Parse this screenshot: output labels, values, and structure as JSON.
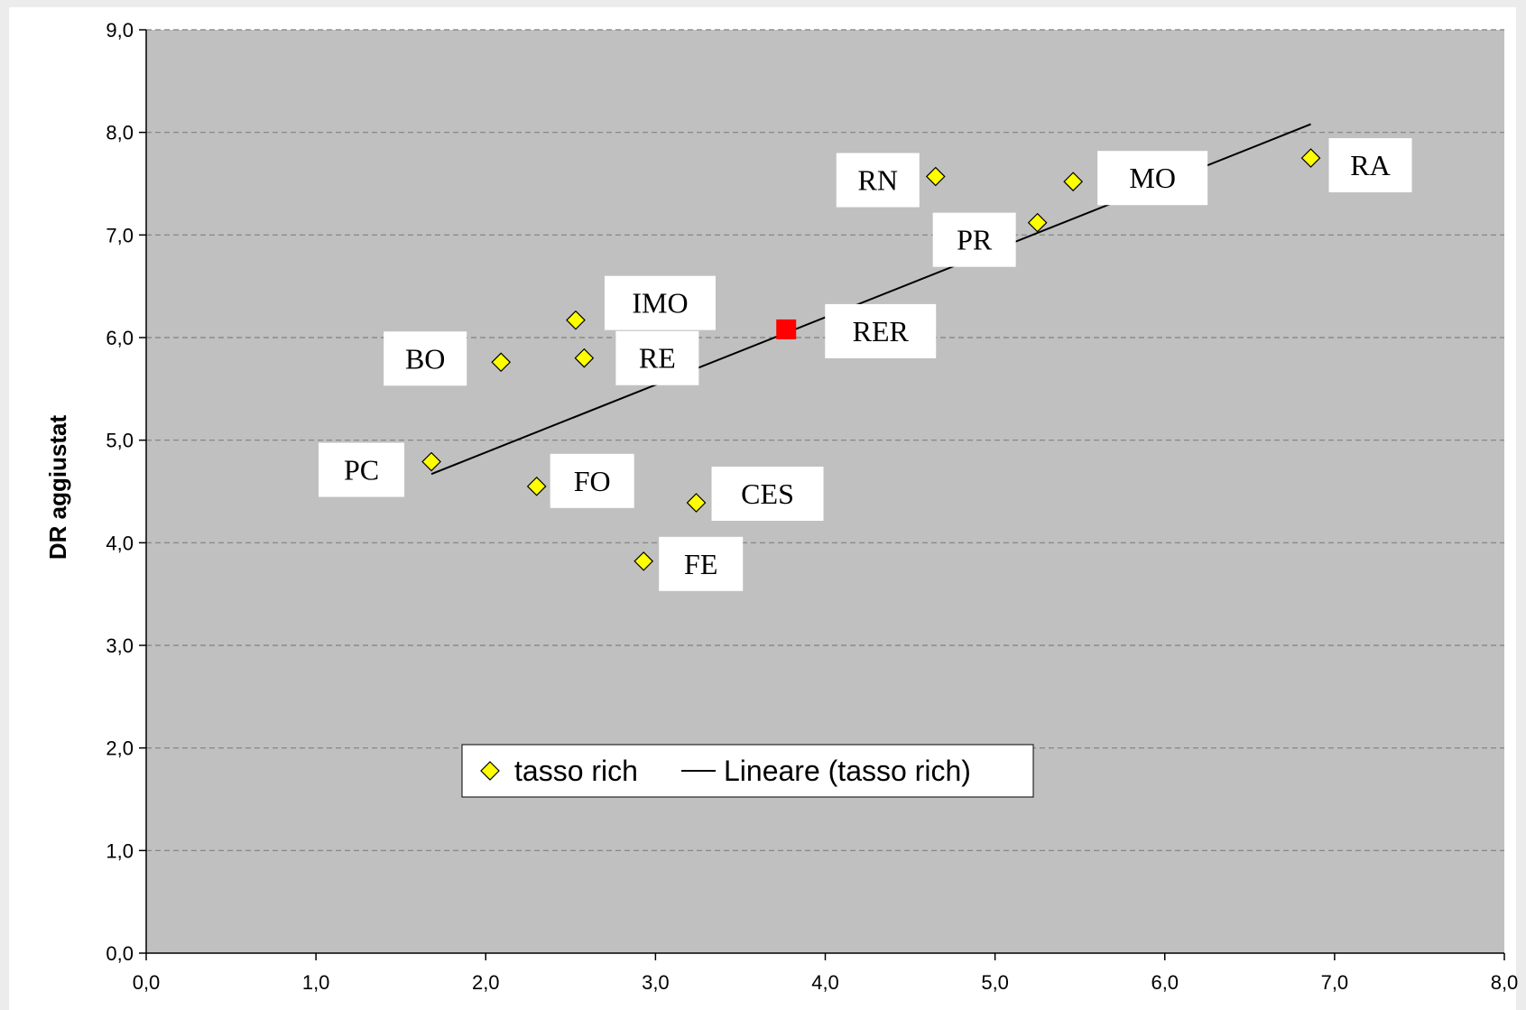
{
  "chart_data": {
    "type": "scatter",
    "title": "",
    "xlabel": "",
    "ylabel": "DR aggiustat",
    "xlim": [
      0,
      8
    ],
    "ylim": [
      0,
      9
    ],
    "x_ticks": [
      "0,0",
      "1,0",
      "2,0",
      "3,0",
      "4,0",
      "5,0",
      "6,0",
      "7,0",
      "8,0"
    ],
    "y_ticks": [
      "0,0",
      "1,0",
      "2,0",
      "3,0",
      "4,0",
      "5,0",
      "6,0",
      "7,0",
      "8,0",
      "9,0"
    ],
    "grid": "horizontal dashed",
    "series": [
      {
        "name": "tasso rich",
        "marker": "diamond",
        "color": "#ffff00",
        "points": [
          {
            "label": "PC",
            "x": 1.68,
            "y": 4.79
          },
          {
            "label": "BO",
            "x": 2.09,
            "y": 5.76
          },
          {
            "label": "FO",
            "x": 2.3,
            "y": 4.55
          },
          {
            "label": "IMO",
            "x": 2.53,
            "y": 6.17
          },
          {
            "label": "RE",
            "x": 2.58,
            "y": 5.8
          },
          {
            "label": "FE",
            "x": 2.93,
            "y": 3.82
          },
          {
            "label": "CES",
            "x": 3.24,
            "y": 4.39
          },
          {
            "label": "RN",
            "x": 4.65,
            "y": 7.57
          },
          {
            "label": "PR",
            "x": 5.25,
            "y": 7.12
          },
          {
            "label": "MO",
            "x": 5.46,
            "y": 7.52
          },
          {
            "label": "RA",
            "x": 6.86,
            "y": 7.75
          }
        ]
      },
      {
        "name": "",
        "marker": "square",
        "color": "#ff0000",
        "points": [
          {
            "label": "RER",
            "x": 3.77,
            "y": 6.08
          }
        ]
      }
    ],
    "trendline": {
      "name": "Lineare (tasso rich)",
      "from": {
        "x": 1.68,
        "y": 4.67
      },
      "to": {
        "x": 6.86,
        "y": 8.08
      }
    },
    "legend": {
      "placement": "bottom-center inside plot",
      "items": [
        {
          "symbol": "diamond",
          "label": "tasso rich"
        },
        {
          "symbol": "line",
          "label": "Lineare (tasso rich)"
        }
      ]
    },
    "colors": {
      "plot_bg": "#c0c0c0",
      "gridline": "#808080",
      "trendline": "#000000",
      "label_box": "#ffffff"
    }
  }
}
